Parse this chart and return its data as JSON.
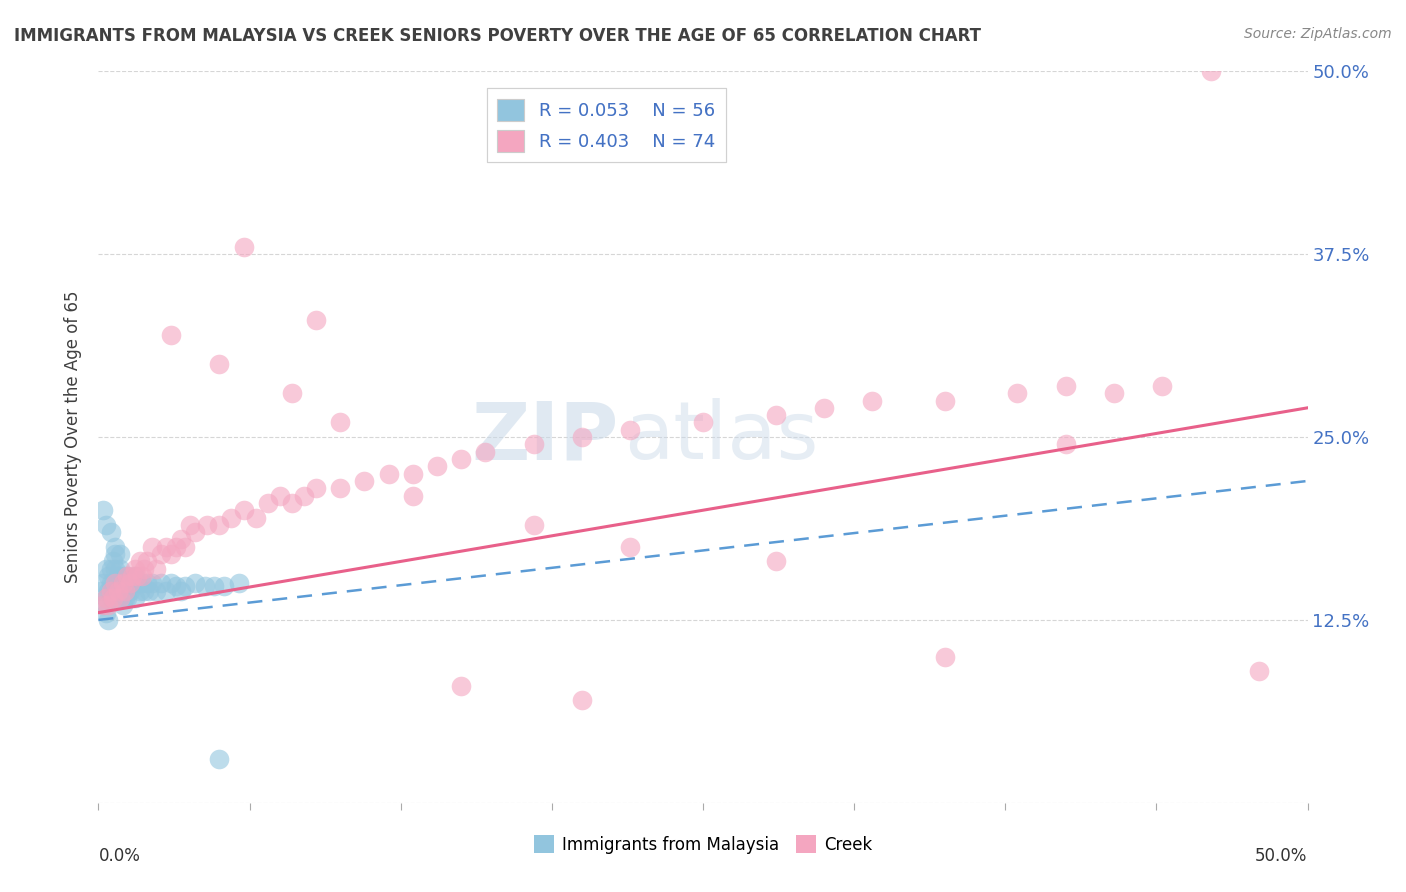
{
  "title": "IMMIGRANTS FROM MALAYSIA VS CREEK SENIORS POVERTY OVER THE AGE OF 65 CORRELATION CHART",
  "source": "Source: ZipAtlas.com",
  "ylabel": "Seniors Poverty Over the Age of 65",
  "right_yticklabels": [
    "",
    "12.5%",
    "25.0%",
    "37.5%",
    "50.0%"
  ],
  "legend_r1": "0.053",
  "legend_n1": "56",
  "legend_r2": "0.403",
  "legend_n2": "74",
  "legend_label1": "Immigrants from Malaysia",
  "legend_label2": "Creek",
  "watermark_zip": "ZIP",
  "watermark_atlas": "atlas",
  "blue_color": "#92c5de",
  "pink_color": "#f4a6c0",
  "blue_line_color": "#5b9bd5",
  "pink_line_color": "#e8608a",
  "grid_color": "#cccccc",
  "background_color": "#ffffff",
  "label_color": "#4472c4",
  "title_color": "#404040",
  "blue_x": [
    0.001,
    0.002,
    0.002,
    0.003,
    0.003,
    0.003,
    0.004,
    0.004,
    0.004,
    0.005,
    0.005,
    0.005,
    0.006,
    0.006,
    0.007,
    0.007,
    0.007,
    0.008,
    0.008,
    0.009,
    0.009,
    0.01,
    0.01,
    0.011,
    0.011,
    0.012,
    0.012,
    0.013,
    0.014,
    0.015,
    0.015,
    0.016,
    0.017,
    0.018,
    0.019,
    0.02,
    0.021,
    0.022,
    0.024,
    0.026,
    0.028,
    0.03,
    0.032,
    0.034,
    0.036,
    0.04,
    0.044,
    0.048,
    0.052,
    0.058,
    0.002,
    0.003,
    0.005,
    0.007,
    0.009,
    0.05
  ],
  "blue_y": [
    0.145,
    0.15,
    0.135,
    0.16,
    0.14,
    0.13,
    0.155,
    0.145,
    0.125,
    0.16,
    0.15,
    0.14,
    0.165,
    0.15,
    0.17,
    0.16,
    0.145,
    0.155,
    0.14,
    0.16,
    0.145,
    0.155,
    0.135,
    0.15,
    0.14,
    0.155,
    0.14,
    0.145,
    0.15,
    0.155,
    0.14,
    0.15,
    0.145,
    0.15,
    0.145,
    0.15,
    0.145,
    0.15,
    0.145,
    0.15,
    0.145,
    0.15,
    0.148,
    0.145,
    0.148,
    0.15,
    0.148,
    0.148,
    0.148,
    0.15,
    0.2,
    0.19,
    0.185,
    0.175,
    0.17,
    0.03
  ],
  "pink_x": [
    0.002,
    0.003,
    0.004,
    0.005,
    0.006,
    0.007,
    0.008,
    0.009,
    0.01,
    0.011,
    0.012,
    0.013,
    0.014,
    0.015,
    0.016,
    0.017,
    0.018,
    0.019,
    0.02,
    0.022,
    0.024,
    0.026,
    0.028,
    0.03,
    0.032,
    0.034,
    0.036,
    0.038,
    0.04,
    0.045,
    0.05,
    0.055,
    0.06,
    0.065,
    0.07,
    0.075,
    0.08,
    0.085,
    0.09,
    0.1,
    0.11,
    0.12,
    0.13,
    0.14,
    0.15,
    0.16,
    0.18,
    0.2,
    0.22,
    0.25,
    0.28,
    0.3,
    0.32,
    0.35,
    0.38,
    0.4,
    0.42,
    0.44,
    0.46,
    0.48,
    0.03,
    0.05,
    0.08,
    0.1,
    0.13,
    0.18,
    0.22,
    0.28,
    0.35,
    0.4,
    0.06,
    0.09,
    0.15,
    0.2
  ],
  "pink_y": [
    0.135,
    0.14,
    0.135,
    0.145,
    0.14,
    0.15,
    0.145,
    0.14,
    0.15,
    0.145,
    0.155,
    0.15,
    0.155,
    0.16,
    0.155,
    0.165,
    0.155,
    0.16,
    0.165,
    0.175,
    0.16,
    0.17,
    0.175,
    0.17,
    0.175,
    0.18,
    0.175,
    0.19,
    0.185,
    0.19,
    0.19,
    0.195,
    0.2,
    0.195,
    0.205,
    0.21,
    0.205,
    0.21,
    0.215,
    0.215,
    0.22,
    0.225,
    0.225,
    0.23,
    0.235,
    0.24,
    0.245,
    0.25,
    0.255,
    0.26,
    0.265,
    0.27,
    0.275,
    0.275,
    0.28,
    0.285,
    0.28,
    0.285,
    0.5,
    0.09,
    0.32,
    0.3,
    0.28,
    0.26,
    0.21,
    0.19,
    0.175,
    0.165,
    0.1,
    0.245,
    0.38,
    0.33,
    0.08,
    0.07
  ],
  "blue_trendline": [
    0.125,
    0.22
  ],
  "pink_trendline": [
    0.13,
    0.27
  ]
}
